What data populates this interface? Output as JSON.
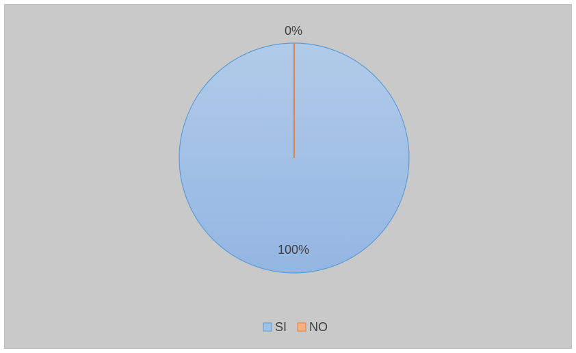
{
  "chart_data": {
    "type": "pie",
    "title": "",
    "categories": [
      "SI",
      "NO"
    ],
    "values": [
      100,
      0
    ],
    "data_labels": [
      "100%",
      "0%"
    ],
    "colors": {
      "SI": "#9dbfe6",
      "NO": "#ed7d31",
      "SI_border": "#5b9bd5",
      "background": "#c9c9c9"
    },
    "legend_position": "bottom"
  },
  "legend": {
    "items": [
      {
        "label": "SI",
        "color": "#9dc3e6",
        "border": "#5b9bd5"
      },
      {
        "label": "NO",
        "color": "#f4b183",
        "border": "#ed7d31"
      }
    ]
  }
}
